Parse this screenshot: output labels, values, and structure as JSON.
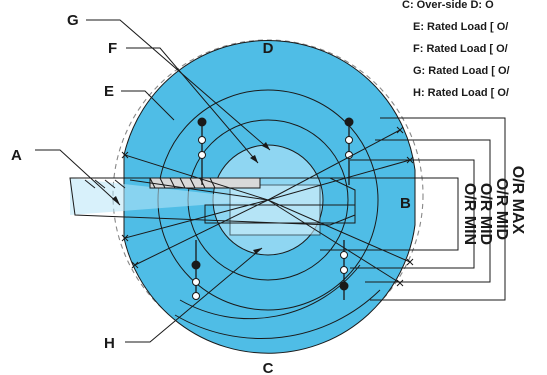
{
  "labels": {
    "a": "A",
    "b": "B",
    "c": "C",
    "d": "D",
    "e": "E",
    "f": "F",
    "g": "G",
    "h": "H"
  },
  "legend": [
    "C: Over-side    D: O",
    "E: Rated Load [ O/",
    "F: Rated Load [ O/",
    "G: Rated Load [ O/",
    "H: Rated Load [ O/"
  ],
  "range_labels": [
    "O/R MAX",
    "O/R MID",
    "O/R MID",
    "O/R MIN"
  ],
  "colors": {
    "zone_outer": "#4fbde6",
    "zone_inner": "#8fd6f2",
    "zone_core": "#b8e6f7",
    "line": "#1a1a1a",
    "dashed": "#888888"
  }
}
